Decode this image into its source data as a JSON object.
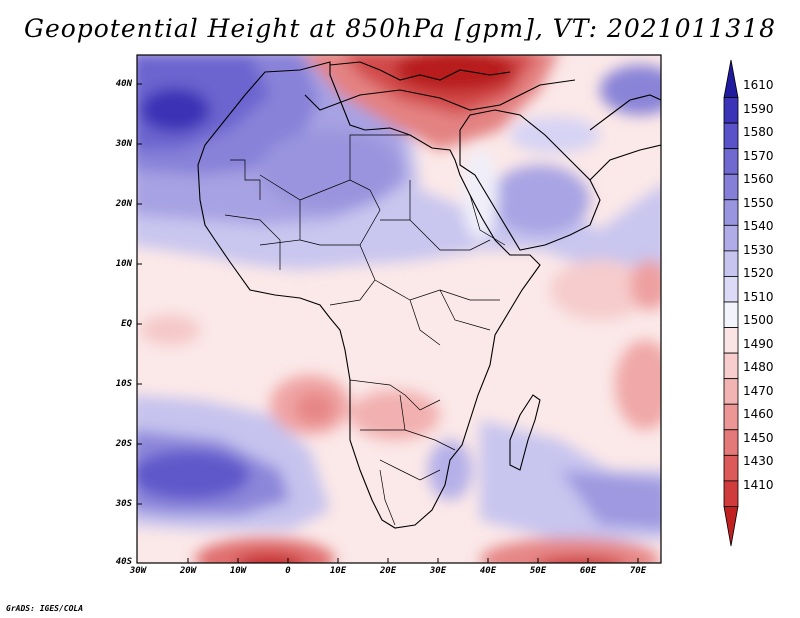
{
  "title": "Geopotential Height at 850hPa [gpm], VT: 2021011318",
  "credit": "GrADS: IGES/COLA",
  "lat_labels": [
    "40N",
    "30N",
    "20N",
    "10N",
    "EQ",
    "10S",
    "20S",
    "30S",
    "40S"
  ],
  "lon_labels": [
    "30W",
    "20W",
    "10W",
    "0",
    "10E",
    "20E",
    "30E",
    "40E",
    "50E",
    "60E",
    "70E"
  ],
  "colorbar": {
    "levels": [
      "1610",
      "1590",
      "1580",
      "1570",
      "1560",
      "1550",
      "1540",
      "1530",
      "1520",
      "1510",
      "1500",
      "1490",
      "1480",
      "1470",
      "1460",
      "1450",
      "1430",
      "1410"
    ],
    "colors": [
      "#1f1a9e",
      "#3b33b8",
      "#5a52c8",
      "#7069d0",
      "#857fd8",
      "#9a95df",
      "#b0ace7",
      "#c7c5ef",
      "#dcdaf6",
      "#f3f3fb",
      "#fbe4e4",
      "#f7cdcd",
      "#f2b3b3",
      "#ec9696",
      "#e57878",
      "#dc5a5a",
      "#d03c3c",
      "#c02020"
    ]
  }
}
